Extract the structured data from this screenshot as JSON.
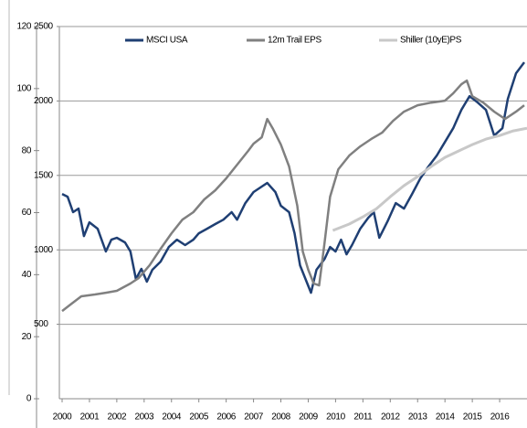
{
  "chart_data": {
    "type": "line",
    "xlim": [
      1999.9,
      2017.0
    ],
    "xticks": [
      2000,
      2001,
      2002,
      2003,
      2004,
      2005,
      2006,
      2007,
      2008,
      2009,
      2010,
      2011,
      2012,
      2013,
      2014,
      2015,
      2016
    ],
    "ylim": [
      0,
      2500
    ],
    "yticks": [
      500,
      1000,
      1500,
      2000,
      2500
    ],
    "y2lim": [
      0,
      120
    ],
    "y2ticks": [
      0,
      20,
      40,
      60,
      80,
      100,
      120
    ],
    "grid": true,
    "legend": "top",
    "series": [
      {
        "name": "MSCI USA",
        "color": "#1f3f73",
        "x": [
          2000.0,
          2000.2,
          2000.4,
          2000.6,
          2000.8,
          2001.0,
          2001.3,
          2001.6,
          2001.8,
          2002.0,
          2002.3,
          2002.5,
          2002.7,
          2002.9,
          2003.1,
          2003.3,
          2003.6,
          2003.9,
          2004.2,
          2004.5,
          2004.8,
          2005.0,
          2005.3,
          2005.6,
          2005.9,
          2006.2,
          2006.4,
          2006.7,
          2007.0,
          2007.3,
          2007.5,
          2007.8,
          2008.0,
          2008.3,
          2008.5,
          2008.7,
          2008.9,
          2009.1,
          2009.3,
          2009.6,
          2009.8,
          2010.0,
          2010.2,
          2010.4,
          2010.6,
          2010.9,
          2011.2,
          2011.4,
          2011.6,
          2011.9,
          2012.2,
          2012.5,
          2012.8,
          2013.1,
          2013.4,
          2013.7,
          2014.0,
          2014.3,
          2014.6,
          2014.9,
          2015.2,
          2015.5,
          2015.8,
          2016.1,
          2016.3,
          2016.6,
          2016.9
        ],
        "values": [
          1375,
          1357,
          1253,
          1277,
          1093,
          1185,
          1142,
          989,
          1068,
          1081,
          1050,
          989,
          804,
          872,
          786,
          866,
          921,
          1019,
          1068,
          1032,
          1068,
          1111,
          1142,
          1173,
          1203,
          1253,
          1203,
          1314,
          1388,
          1425,
          1449,
          1388,
          1296,
          1253,
          1111,
          896,
          804,
          712,
          866,
          939,
          1019,
          989,
          1068,
          970,
          1032,
          1142,
          1216,
          1253,
          1081,
          1191,
          1314,
          1277,
          1375,
          1480,
          1560,
          1633,
          1725,
          1817,
          1940,
          2032,
          1989,
          1940,
          1768,
          1817,
          2014,
          2186,
          2260
        ]
      },
      {
        "name": "12m Trail EPS",
        "color": "#808080",
        "x": [
          2000.0,
          2000.3,
          2000.7,
          2001.2,
          2001.6,
          2002.0,
          2002.5,
          2002.8,
          2003.2,
          2003.6,
          2004.0,
          2004.4,
          2004.8,
          2005.2,
          2005.6,
          2006.0,
          2006.4,
          2006.8,
          2007.0,
          2007.3,
          2007.5,
          2007.7,
          2008.0,
          2008.3,
          2008.6,
          2008.8,
          2009.0,
          2009.2,
          2009.4,
          2009.6,
          2009.8,
          2010.1,
          2010.5,
          2010.9,
          2011.3,
          2011.7,
          2012.1,
          2012.5,
          2013.0,
          2013.5,
          2014.0,
          2014.3,
          2014.6,
          2014.8,
          2015.0,
          2015.4,
          2015.8,
          2016.2,
          2016.6,
          2016.9
        ],
        "values": [
          589,
          632,
          688,
          700,
          712,
          725,
          774,
          810,
          896,
          1007,
          1111,
          1203,
          1253,
          1339,
          1400,
          1480,
          1572,
          1664,
          1713,
          1756,
          1879,
          1817,
          1707,
          1560,
          1296,
          989,
          866,
          774,
          761,
          1050,
          1357,
          1541,
          1633,
          1695,
          1744,
          1787,
          1866,
          1928,
          1971,
          1989,
          2002,
          2051,
          2112,
          2137,
          2032,
          1989,
          1928,
          1879,
          1928,
          1971
        ]
      },
      {
        "name": "Shiller (10yE)PS",
        "color": "#c8c8c8",
        "x": [
          2009.9,
          2010.5,
          2011.0,
          2011.5,
          2012.0,
          2012.5,
          2013.0,
          2013.5,
          2014.0,
          2014.5,
          2015.0,
          2015.5,
          2016.0,
          2016.5,
          2017.0
        ],
        "values": [
          1130,
          1173,
          1222,
          1277,
          1357,
          1431,
          1492,
          1560,
          1621,
          1664,
          1707,
          1744,
          1768,
          1799,
          1817
        ]
      }
    ]
  }
}
